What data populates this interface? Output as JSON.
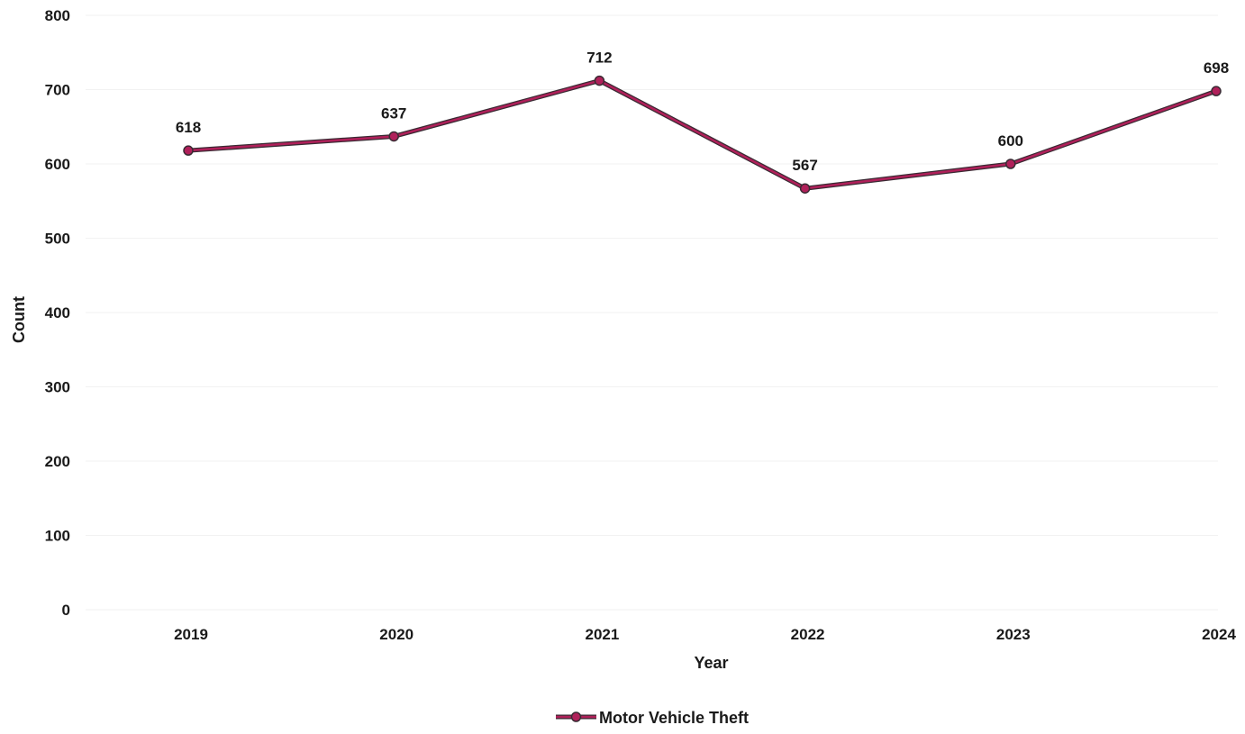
{
  "chart_data": {
    "type": "line",
    "categories": [
      "2019",
      "2020",
      "2021",
      "2022",
      "2023",
      "2024"
    ],
    "series": [
      {
        "name": "Motor Vehicle Theft",
        "values": [
          618,
          637,
          712,
          567,
          600,
          698
        ],
        "color": "#b0205a"
      }
    ],
    "data_labels": [
      "618",
      "637",
      "712",
      "567",
      "600",
      "698"
    ],
    "xlabel": "Year",
    "ylabel": "Count",
    "ylim": [
      0,
      800
    ],
    "y_ticks": [
      "0",
      "100",
      "200",
      "300",
      "400",
      "500",
      "600",
      "700",
      "800"
    ],
    "grid": true,
    "legend_position": "bottom-center",
    "line_outline_color": "#3a2a33"
  }
}
